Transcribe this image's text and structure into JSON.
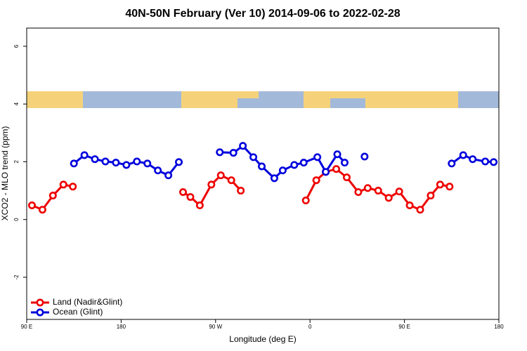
{
  "chart_data": {
    "type": "line",
    "title": "40N-50N February (Ver 10)   2014-09-06 to 2022-02-28",
    "x_label": "Longitude (deg E)",
    "y_label": "XCO2 - MLO trend (ppm)",
    "xlim": [
      90,
      540
    ],
    "xticks": [
      {
        "value": 90,
        "label": "90 E"
      },
      180,
      {
        "value": 270,
        "label": "90 W"
      },
      {
        "value": 360,
        "label": "0"
      },
      {
        "value": 450,
        "label": "90 E"
      },
      {
        "value": 540,
        "label": "180"
      }
    ],
    "ylim": [
      -3.46,
      6.63
    ],
    "yticks": [
      -2,
      0,
      2,
      4,
      6
    ],
    "legend": "bottom-left",
    "series": [
      {
        "name": "Land (Nadir&Glint)",
        "color": "#ee0000",
        "x": [
          95,
          105,
          115,
          125,
          134,
          null,
          239,
          246,
          255,
          266,
          275,
          285,
          294,
          null,
          356,
          366,
          375,
          385,
          395,
          406,
          415,
          425,
          435,
          445,
          455,
          465,
          475,
          484,
          493
        ],
        "values": [
          0.49,
          0.34,
          0.83,
          1.21,
          1.14,
          null,
          0.95,
          0.78,
          0.49,
          1.21,
          1.53,
          1.36,
          1.0,
          null,
          0.66,
          1.36,
          1.65,
          1.75,
          1.46,
          0.95,
          1.09,
          1.0,
          0.75,
          0.97,
          0.49,
          0.34,
          0.83,
          1.21,
          1.14
        ]
      },
      {
        "name": "Ocean (Glint)",
        "color": "#0000dd",
        "x": [
          135,
          145,
          155,
          165,
          175,
          185,
          195,
          205,
          215,
          225,
          235,
          null,
          274,
          287,
          296,
          306,
          314,
          326,
          334,
          345,
          354,
          367,
          375,
          386,
          393,
          null,
          412,
          null,
          495,
          506,
          515,
          527,
          535
        ],
        "values": [
          1.94,
          2.23,
          2.09,
          2.01,
          1.97,
          1.89,
          2.01,
          1.94,
          1.7,
          1.53,
          1.99,
          null,
          2.33,
          2.31,
          2.55,
          2.16,
          1.84,
          1.43,
          1.7,
          1.89,
          1.97,
          2.16,
          1.65,
          2.26,
          1.97,
          null,
          2.18,
          null,
          1.94,
          2.23,
          2.09,
          2.01,
          1.99
        ]
      }
    ]
  }
}
